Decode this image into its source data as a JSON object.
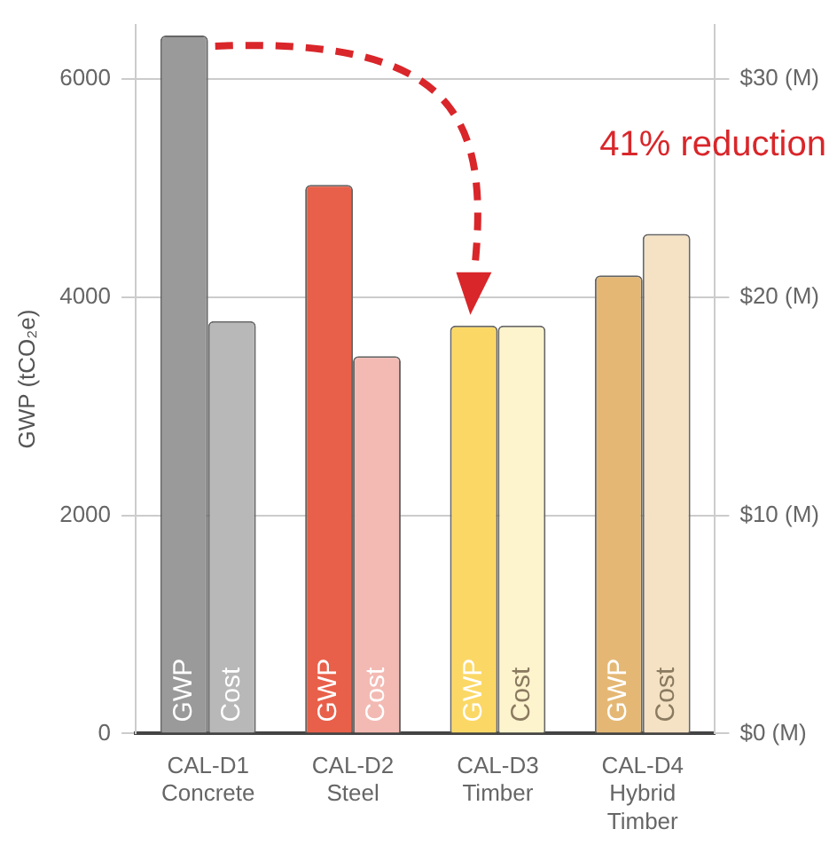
{
  "chart_data": {
    "type": "bar",
    "ylabel": "GWP (tCO₂e)",
    "categories": [
      "CAL-D1\nConcrete",
      "CAL-D2\nSteel",
      "CAL-D3\nTimber",
      "CAL-D4\nHybrid\nTimber"
    ],
    "series": [
      {
        "name": "GWP",
        "colors": [
          "#9a9a9a",
          "#e8604a",
          "#fbd866",
          "#e4b874"
        ],
        "values": [
          6400,
          5030,
          3740,
          4200
        ]
      },
      {
        "name": "Cost",
        "axis": "y2",
        "colors": [
          "#b8b8b8",
          "#f3bab3",
          "#fdf3cc",
          "#f5e2c4"
        ],
        "values": [
          18.9,
          17.3,
          18.7,
          22.9
        ]
      }
    ],
    "ylim": [
      0,
      6500
    ],
    "yticks": [
      0,
      2000,
      4000,
      6000
    ],
    "y2lim": [
      0,
      32.5
    ],
    "y2ticks": [
      {
        "value": 0,
        "label": "$0 (M)"
      },
      {
        "value": 10,
        "label": "$10 (M)"
      },
      {
        "value": 20,
        "label": "$20 (M)"
      },
      {
        "value": 30,
        "label": "$30 (M)"
      }
    ],
    "grid": "y",
    "legend": false,
    "annotations": [
      "41% reduction"
    ]
  }
}
